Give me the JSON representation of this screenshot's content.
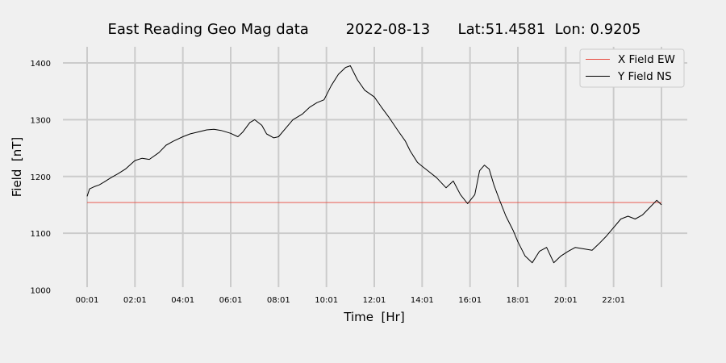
{
  "chart_data": {
    "type": "line",
    "title": "East Reading Geo Mag data        2022-08-13      Lat:51.4581  Lon: 0.9205",
    "xlabel": "Time  [Hr]",
    "ylabel": "Field  [nT]",
    "ylim": [
      1000,
      1400
    ],
    "xlim": [
      0,
      24
    ],
    "grid": true,
    "legend_position": "top-right",
    "x_ticks": [
      {
        "value": 0,
        "label": "00:01"
      },
      {
        "value": 2,
        "label": "02:01"
      },
      {
        "value": 4,
        "label": "04:01"
      },
      {
        "value": 6,
        "label": "06:01"
      },
      {
        "value": 8,
        "label": "08:01"
      },
      {
        "value": 10,
        "label": "10:01"
      },
      {
        "value": 12,
        "label": "12:01"
      },
      {
        "value": 14,
        "label": "14:01"
      },
      {
        "value": 16,
        "label": "16:01"
      },
      {
        "value": 18,
        "label": "18:01"
      },
      {
        "value": 20,
        "label": "20:01"
      },
      {
        "value": 22,
        "label": "22:01"
      }
    ],
    "y_ticks": [
      1000,
      1100,
      1200,
      1300,
      1400
    ],
    "series": [
      {
        "name": "X Field EW",
        "color": "#e8473c",
        "x": [
          0,
          24
        ],
        "y": [
          1154,
          1154
        ]
      },
      {
        "name": "Y Field NS",
        "color": "#000000",
        "x": [
          0,
          0.1,
          0.3,
          0.5,
          0.7,
          1.0,
          1.3,
          1.6,
          2.0,
          2.3,
          2.6,
          3.0,
          3.3,
          3.6,
          4.0,
          4.3,
          4.6,
          5.0,
          5.3,
          5.6,
          6.0,
          6.3,
          6.5,
          6.8,
          7.0,
          7.3,
          7.5,
          7.8,
          8.0,
          8.3,
          8.6,
          9.0,
          9.3,
          9.6,
          9.9,
          10.2,
          10.5,
          10.8,
          11.0,
          11.3,
          11.6,
          12.0,
          12.3,
          12.6,
          13.0,
          13.3,
          13.5,
          13.8,
          14.0,
          14.3,
          14.6,
          15.0,
          15.3,
          15.6,
          15.9,
          16.2,
          16.4,
          16.6,
          16.8,
          17.0,
          17.2,
          17.5,
          17.8,
          18.0,
          18.3,
          18.6,
          18.9,
          19.2,
          19.5,
          19.8,
          20.1,
          20.4,
          20.8,
          21.1,
          21.4,
          21.7,
          22.0,
          22.3,
          22.6,
          22.9,
          23.2,
          23.5,
          23.8,
          24.0
        ],
        "y": [
          1165,
          1178,
          1182,
          1185,
          1190,
          1198,
          1205,
          1213,
          1228,
          1232,
          1230,
          1242,
          1255,
          1262,
          1270,
          1275,
          1278,
          1282,
          1283,
          1281,
          1276,
          1270,
          1278,
          1295,
          1300,
          1290,
          1275,
          1268,
          1270,
          1285,
          1300,
          1310,
          1322,
          1330,
          1335,
          1360,
          1380,
          1392,
          1395,
          1370,
          1352,
          1340,
          1322,
          1305,
          1280,
          1262,
          1245,
          1225,
          1218,
          1208,
          1198,
          1180,
          1192,
          1168,
          1152,
          1168,
          1210,
          1220,
          1213,
          1185,
          1162,
          1130,
          1105,
          1085,
          1060,
          1048,
          1068,
          1075,
          1048,
          1060,
          1068,
          1075,
          1072,
          1070,
          1082,
          1095,
          1110,
          1125,
          1130,
          1125,
          1132,
          1145,
          1158,
          1150
        ]
      }
    ]
  }
}
